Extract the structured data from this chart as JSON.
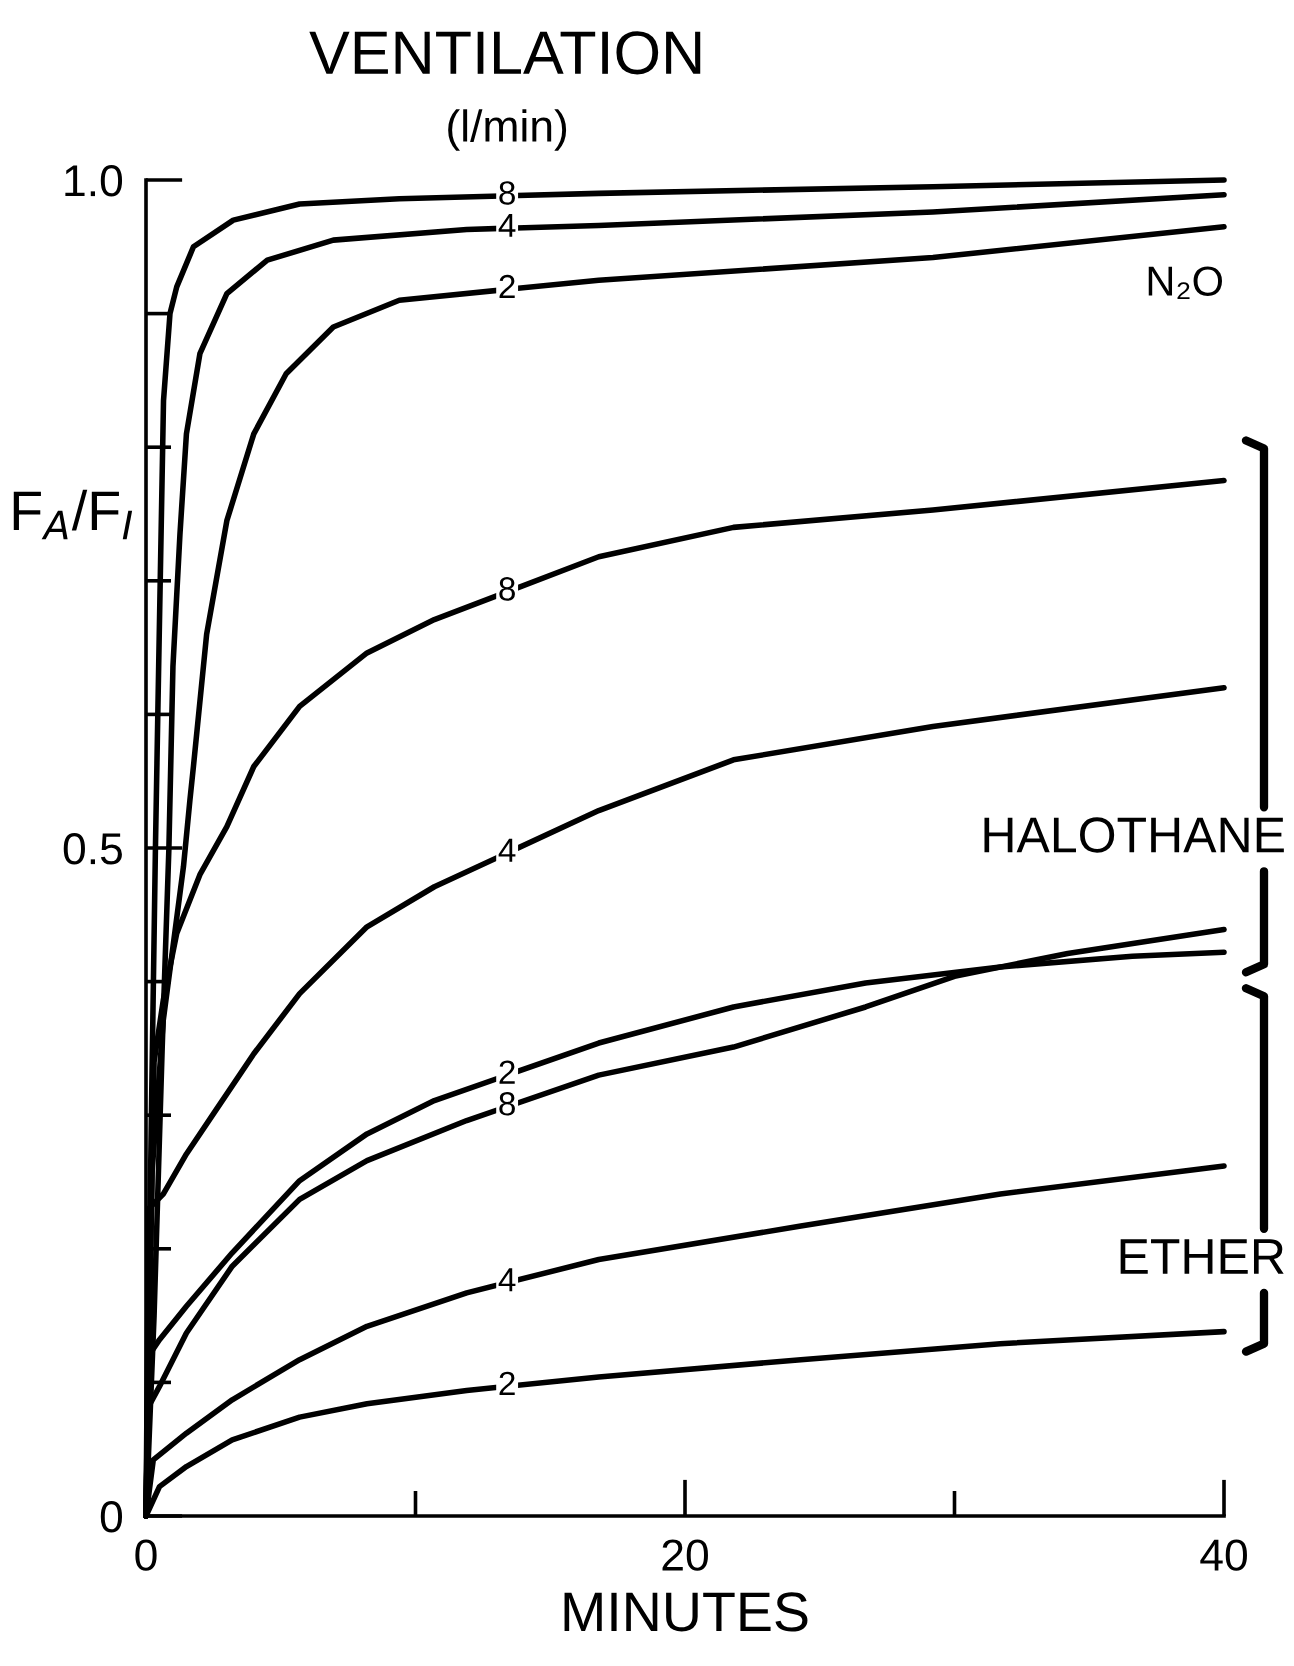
{
  "chart_data": {
    "type": "line",
    "title": "VENTILATION",
    "subtitle": "(l/min)",
    "xlabel": "MINUTES",
    "ylabel": "F$_{A}$/F$_{I}$",
    "xlim": [
      0,
      40
    ],
    "xticks": [
      0,
      {
        "value": 10,
        "label": null
      },
      20,
      {
        "value": 30,
        "label": null
      },
      40
    ],
    "ylim": [
      0,
      1.0
    ],
    "yticks": [
      0,
      {
        "value": 0.1,
        "label": null
      },
      {
        "value": 0.2,
        "label": null
      },
      {
        "value": 0.3,
        "label": null
      },
      {
        "value": 0.4,
        "label": null
      },
      0.5,
      {
        "value": 0.6,
        "label": null
      },
      {
        "value": 0.7,
        "label": null
      },
      {
        "value": 0.8,
        "label": null
      },
      {
        "value": 0.9,
        "label": null
      },
      {
        "value": 1.0,
        "label": "1.0"
      }
    ],
    "annotations": [
      "N₂O",
      "HALOTHANE",
      "ETHER"
    ],
    "series": [
      {
        "name": "8",
        "color": "#000000",
        "x": [
          0,
          0.2,
          0.35,
          0.47,
          0.65,
          0.89,
          1.14,
          1.76,
          3.24,
          5.7,
          9.4,
          16.8,
          29.2,
          40
        ],
        "values": [
          0,
          0.3,
          0.5,
          0.636,
          0.835,
          0.9,
          0.92,
          0.95,
          0.97,
          0.982,
          0.986,
          0.99,
          0.995,
          1.0
        ]
      },
      {
        "name": "4",
        "color": "#000000",
        "x": [
          0,
          0.3,
          0.6,
          0.85,
          1.0,
          1.26,
          1.5,
          2.0,
          3.0,
          4.5,
          6.95,
          11.9,
          16.8,
          29.2,
          40
        ],
        "values": [
          0,
          0.15,
          0.35,
          0.5,
          0.636,
          0.735,
          0.81,
          0.87,
          0.915,
          0.94,
          0.955,
          0.963,
          0.966,
          0.976,
          0.989
        ]
      },
      {
        "name": "2",
        "color": "#000000",
        "x": [
          0,
          0.22,
          0.64,
          1.0,
          1.39,
          1.63,
          1.76,
          2.25,
          3.0,
          4.0,
          5.2,
          6.95,
          9.4,
          16.8,
          29.2,
          40
        ],
        "values": [
          0,
          0.256,
          0.371,
          0.426,
          0.486,
          0.536,
          0.561,
          0.66,
          0.745,
          0.81,
          0.855,
          0.89,
          0.91,
          0.925,
          0.942,
          0.965
        ]
      },
      {
        "name": "8",
        "color": "#000000",
        "x": [
          0,
          0.3,
          0.64,
          1.14,
          2.0,
          3.0,
          4.0,
          5.7,
          8.2,
          10.7,
          16.8,
          21.8,
          29.2,
          40
        ],
        "values": [
          0,
          0.34,
          0.386,
          0.436,
          0.48,
          0.516,
          0.561,
          0.606,
          0.646,
          0.671,
          0.718,
          0.74,
          0.753,
          0.775
        ]
      },
      {
        "name": "4",
        "color": "#000000",
        "x": [
          0,
          0.1,
          0.64,
          1.5,
          2.5,
          4.0,
          5.7,
          8.2,
          10.7,
          16.8,
          21.8,
          29.2,
          40
        ],
        "values": [
          0,
          0.23,
          0.241,
          0.271,
          0.301,
          0.346,
          0.391,
          0.441,
          0.471,
          0.528,
          0.566,
          0.591,
          0.62
        ]
      },
      {
        "name": "2",
        "color": "#000000",
        "x": [
          0,
          0.1,
          0.5,
          1.5,
          3.2,
          5.7,
          8.2,
          10.7,
          16.8,
          21.8,
          26.7,
          31.7,
          36.6,
          40
        ],
        "values": [
          0,
          0.12,
          0.132,
          0.157,
          0.197,
          0.251,
          0.286,
          0.311,
          0.354,
          0.381,
          0.399,
          0.411,
          0.419,
          0.422
        ]
      },
      {
        "name": "8",
        "color": "#000000",
        "x": [
          0,
          0.1,
          0.5,
          1.5,
          3.2,
          5.7,
          8.2,
          11.9,
          16.8,
          21.8,
          26.7,
          30,
          34.2,
          40
        ],
        "values": [
          0,
          0.082,
          0.097,
          0.137,
          0.187,
          0.237,
          0.266,
          0.296,
          0.33,
          0.351,
          0.381,
          0.404,
          0.421,
          0.439
        ]
      },
      {
        "name": "4",
        "color": "#000000",
        "x": [
          0,
          0.27,
          1.5,
          3.2,
          5.7,
          8.2,
          11.9,
          16.8,
          24.3,
          31.7,
          40
        ],
        "values": [
          0,
          0.042,
          0.062,
          0.087,
          0.117,
          0.142,
          0.167,
          0.192,
          0.217,
          0.241,
          0.262
        ]
      },
      {
        "name": "2",
        "color": "#000000",
        "x": [
          0,
          0.5,
          1.5,
          3.2,
          5.7,
          8.2,
          11.9,
          16.8,
          24.3,
          31.7,
          40
        ],
        "values": [
          0,
          0.022,
          0.037,
          0.057,
          0.074,
          0.084,
          0.094,
          0.104,
          0.117,
          0.129,
          0.138
        ]
      }
    ]
  }
}
